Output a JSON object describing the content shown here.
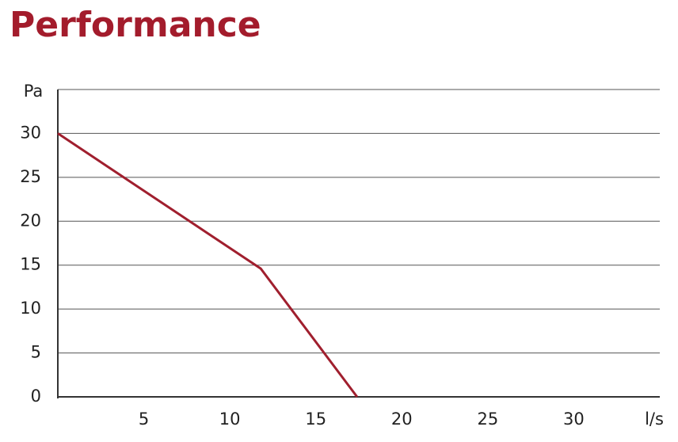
{
  "chart_data": {
    "type": "line",
    "title": "Performance",
    "y_label": "Pa",
    "x_label": "l/s",
    "series": [
      {
        "color": "#a01f2e",
        "x": [
          0,
          11.8,
          17.4
        ],
        "values": [
          30,
          14.6,
          0
        ]
      }
    ],
    "xlim": [
      0,
      35
    ],
    "xticks": [
      5,
      10,
      15,
      20,
      25,
      30
    ],
    "ylim": [
      0,
      35
    ],
    "yticks": [
      0,
      5,
      10,
      15,
      20,
      25,
      30
    ],
    "grid": true
  }
}
